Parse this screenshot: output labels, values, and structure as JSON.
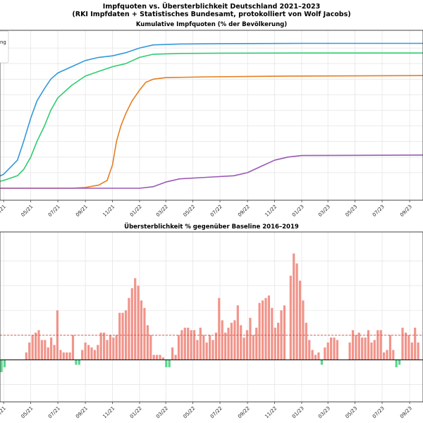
{
  "figure": {
    "title_line1": "Impfquoten vs. Übersterblichkeit Deutschland 2021–2023",
    "title_line2": "(RKI Impfdaten + Statistisches Bundesamt, protokolliert von Wolf Jacobs)"
  },
  "chart_data": [
    {
      "type": "line",
      "title": "Kumulative Impfquoten (% der Bevölkerung)",
      "x_axis": {
        "start": "2021-01",
        "end": "2023-10"
      },
      "tick_labels": [
        "03/21",
        "05/21",
        "07/21",
        "09/21",
        "11/21",
        "01/22",
        "03/22",
        "05/22",
        "07/22",
        "09/22",
        "11/22",
        "01/23",
        "03/23",
        "05/23",
        "07/23",
        "09/23"
      ],
      "y_range": [
        0,
        100
      ],
      "grid": true,
      "legend_visible_text": "ng",
      "series": [
        {
          "color": "#3498db",
          "points": [
            [
              "2021-01-01",
              3
            ],
            [
              "2021-02-01",
              5
            ],
            [
              "2021-03-01",
              9
            ],
            [
              "2021-04-01",
              18
            ],
            [
              "2021-04-15",
              30
            ],
            [
              "2021-05-01",
              45
            ],
            [
              "2021-05-15",
              56
            ],
            [
              "2021-06-01",
              64
            ],
            [
              "2021-06-15",
              70
            ],
            [
              "2021-07-01",
              74
            ],
            [
              "2021-08-01",
              78
            ],
            [
              "2021-09-01",
              82
            ],
            [
              "2021-10-01",
              84
            ],
            [
              "2021-11-01",
              85
            ],
            [
              "2021-12-01",
              87
            ],
            [
              "2022-01-01",
              90
            ],
            [
              "2022-02-01",
              92
            ],
            [
              "2022-04-01",
              92.6
            ],
            [
              "2022-07-01",
              92.8
            ],
            [
              "2023-01-01",
              93
            ],
            [
              "2023-10-01",
              93
            ]
          ]
        },
        {
          "color": "#2ecc71",
          "points": [
            [
              "2021-01-01",
              2
            ],
            [
              "2021-02-01",
              3
            ],
            [
              "2021-03-01",
              5
            ],
            [
              "2021-04-01",
              8
            ],
            [
              "2021-04-15",
              12
            ],
            [
              "2021-05-01",
              20
            ],
            [
              "2021-05-15",
              30
            ],
            [
              "2021-06-01",
              40
            ],
            [
              "2021-06-15",
              50
            ],
            [
              "2021-07-01",
              58
            ],
            [
              "2021-08-01",
              66
            ],
            [
              "2021-09-01",
              72
            ],
            [
              "2021-10-01",
              75
            ],
            [
              "2021-11-01",
              78
            ],
            [
              "2021-12-01",
              80
            ],
            [
              "2022-01-01",
              84
            ],
            [
              "2022-02-01",
              86
            ],
            [
              "2022-04-01",
              86.5
            ],
            [
              "2022-07-01",
              86.7
            ],
            [
              "2023-01-01",
              86.8
            ],
            [
              "2023-10-01",
              86.8
            ]
          ]
        },
        {
          "color": "#e67e22",
          "points": [
            [
              "2021-01-01",
              0
            ],
            [
              "2021-08-01",
              0
            ],
            [
              "2021-09-01",
              0.5
            ],
            [
              "2021-10-01",
              2
            ],
            [
              "2021-10-20",
              5
            ],
            [
              "2021-11-01",
              15
            ],
            [
              "2021-11-10",
              30
            ],
            [
              "2021-11-20",
              40
            ],
            [
              "2021-12-01",
              48
            ],
            [
              "2021-12-15",
              56
            ],
            [
              "2022-01-01",
              63
            ],
            [
              "2022-01-15",
              68
            ],
            [
              "2022-02-01",
              70
            ],
            [
              "2022-03-01",
              71
            ],
            [
              "2022-06-01",
              71.5
            ],
            [
              "2022-12-01",
              72
            ],
            [
              "2023-10-01",
              72.3
            ]
          ]
        },
        {
          "color": "#9b59b6",
          "points": [
            [
              "2021-01-01",
              0
            ],
            [
              "2022-01-01",
              0
            ],
            [
              "2022-02-01",
              1
            ],
            [
              "2022-03-01",
              4
            ],
            [
              "2022-04-01",
              6
            ],
            [
              "2022-06-01",
              7
            ],
            [
              "2022-08-01",
              8
            ],
            [
              "2022-09-01",
              10
            ],
            [
              "2022-10-01",
              14
            ],
            [
              "2022-11-01",
              18
            ],
            [
              "2022-12-01",
              20
            ],
            [
              "2023-01-01",
              21
            ],
            [
              "2023-10-01",
              21.3
            ]
          ]
        }
      ]
    },
    {
      "type": "bar",
      "title": "Übersterblichkeit % gegenüber Baseline 2016–2019",
      "x_axis": {
        "start": "2021-01",
        "end": "2023-10"
      },
      "tick_labels": [
        "03/21",
        "05/21",
        "07/21",
        "09/21",
        "11/21",
        "01/22",
        "03/22",
        "05/22",
        "07/22",
        "09/22",
        "11/22",
        "01/23",
        "03/23",
        "05/23",
        "07/23",
        "09/23"
      ],
      "y_range": [
        -15,
        50
      ],
      "reference_line": 10,
      "positive_color": "#f1948a",
      "negative_color": "#58d68d",
      "bars": [
        [
          "2021-02-17",
          -7
        ],
        [
          "2021-02-24",
          -5
        ],
        [
          "2021-03-03",
          -3
        ],
        [
          "2021-04-21",
          3
        ],
        [
          "2021-04-28",
          7
        ],
        [
          "2021-05-05",
          10
        ],
        [
          "2021-05-12",
          11
        ],
        [
          "2021-05-19",
          12
        ],
        [
          "2021-05-26",
          8
        ],
        [
          "2021-06-02",
          8
        ],
        [
          "2021-06-09",
          5
        ],
        [
          "2021-06-16",
          9
        ],
        [
          "2021-06-23",
          6
        ],
        [
          "2021-06-30",
          20
        ],
        [
          "2021-07-07",
          4
        ],
        [
          "2021-07-14",
          3
        ],
        [
          "2021-07-21",
          3
        ],
        [
          "2021-07-28",
          3
        ],
        [
          "2021-08-04",
          10
        ],
        [
          "2021-08-11",
          -2
        ],
        [
          "2021-08-18",
          -2
        ],
        [
          "2021-08-25",
          4
        ],
        [
          "2021-09-01",
          7
        ],
        [
          "2021-09-08",
          6
        ],
        [
          "2021-09-15",
          5
        ],
        [
          "2021-09-22",
          4
        ],
        [
          "2021-09-29",
          6
        ],
        [
          "2021-10-06",
          11
        ],
        [
          "2021-10-13",
          11
        ],
        [
          "2021-10-20",
          8
        ],
        [
          "2021-10-27",
          10
        ],
        [
          "2021-11-03",
          9
        ],
        [
          "2021-11-10",
          10
        ],
        [
          "2021-11-17",
          19
        ],
        [
          "2021-11-24",
          19
        ],
        [
          "2021-12-01",
          20
        ],
        [
          "2021-12-08",
          25
        ],
        [
          "2021-12-15",
          29
        ],
        [
          "2021-12-22",
          33
        ],
        [
          "2021-12-29",
          30
        ],
        [
          "2022-01-05",
          24
        ],
        [
          "2022-01-12",
          21
        ],
        [
          "2022-01-19",
          14
        ],
        [
          "2022-01-26",
          10
        ],
        [
          "2022-02-02",
          2
        ],
        [
          "2022-02-09",
          2
        ],
        [
          "2022-02-16",
          2
        ],
        [
          "2022-02-23",
          1
        ],
        [
          "2022-03-02",
          -3
        ],
        [
          "2022-03-09",
          -3
        ],
        [
          "2022-03-16",
          5
        ],
        [
          "2022-03-23",
          2
        ],
        [
          "2022-03-30",
          10
        ],
        [
          "2022-04-06",
          12
        ],
        [
          "2022-04-13",
          13
        ],
        [
          "2022-04-20",
          13
        ],
        [
          "2022-04-27",
          12
        ],
        [
          "2022-05-04",
          12
        ],
        [
          "2022-05-11",
          8
        ],
        [
          "2022-05-18",
          13
        ],
        [
          "2022-05-25",
          10
        ],
        [
          "2022-06-01",
          7
        ],
        [
          "2022-06-08",
          10
        ],
        [
          "2022-06-15",
          8
        ],
        [
          "2022-06-22",
          11
        ],
        [
          "2022-06-29",
          25
        ],
        [
          "2022-07-06",
          16
        ],
        [
          "2022-07-13",
          11
        ],
        [
          "2022-07-20",
          13
        ],
        [
          "2022-07-27",
          15
        ],
        [
          "2022-08-03",
          16
        ],
        [
          "2022-08-10",
          22
        ],
        [
          "2022-08-17",
          14
        ],
        [
          "2022-08-24",
          9
        ],
        [
          "2022-08-31",
          12
        ],
        [
          "2022-09-07",
          17
        ],
        [
          "2022-09-14",
          10
        ],
        [
          "2022-09-21",
          13
        ],
        [
          "2022-09-28",
          23
        ],
        [
          "2022-10-05",
          24
        ],
        [
          "2022-10-12",
          25
        ],
        [
          "2022-10-19",
          26
        ],
        [
          "2022-10-26",
          21
        ],
        [
          "2022-11-02",
          13
        ],
        [
          "2022-11-09",
          15
        ],
        [
          "2022-11-16",
          20
        ],
        [
          "2022-11-23",
          22
        ],
        [
          "2022-12-07",
          34
        ],
        [
          "2022-12-14",
          43
        ],
        [
          "2022-12-21",
          39
        ],
        [
          "2022-12-28",
          32
        ],
        [
          "2023-01-04",
          24
        ],
        [
          "2023-01-11",
          15
        ],
        [
          "2023-01-18",
          8
        ],
        [
          "2023-01-25",
          4
        ],
        [
          "2023-02-01",
          2
        ],
        [
          "2023-02-08",
          3
        ],
        [
          "2023-02-15",
          -2
        ],
        [
          "2023-02-22",
          5
        ],
        [
          "2023-03-01",
          7
        ],
        [
          "2023-03-08",
          9
        ],
        [
          "2023-03-15",
          9
        ],
        [
          "2023-03-22",
          8
        ],
        [
          "2023-04-19",
          7
        ],
        [
          "2023-04-26",
          12
        ],
        [
          "2023-05-03",
          10
        ],
        [
          "2023-05-10",
          11
        ],
        [
          "2023-05-17",
          9
        ],
        [
          "2023-05-24",
          9
        ],
        [
          "2023-05-31",
          12
        ],
        [
          "2023-06-07",
          7
        ],
        [
          "2023-06-14",
          8
        ],
        [
          "2023-06-21",
          12
        ],
        [
          "2023-06-28",
          12
        ],
        [
          "2023-07-05",
          3
        ],
        [
          "2023-07-12",
          4
        ],
        [
          "2023-07-19",
          10
        ],
        [
          "2023-07-26",
          4
        ],
        [
          "2023-08-02",
          -3
        ],
        [
          "2023-08-09",
          -2
        ],
        [
          "2023-08-16",
          13
        ],
        [
          "2023-08-23",
          11
        ],
        [
          "2023-08-30",
          10
        ],
        [
          "2023-09-06",
          7
        ],
        [
          "2023-09-13",
          13
        ],
        [
          "2023-09-20",
          7
        ]
      ]
    }
  ]
}
